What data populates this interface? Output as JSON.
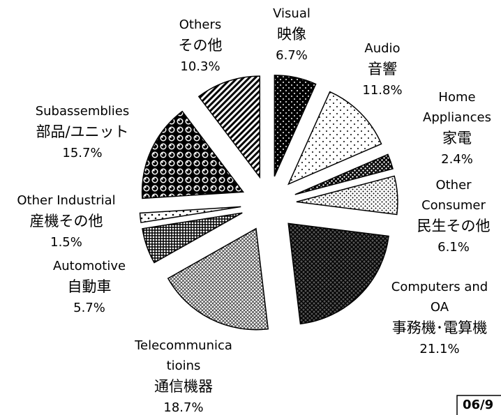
{
  "chart_data": {
    "type": "pie",
    "categories": [
      [
        "Visual",
        "映像"
      ],
      [
        "Audio",
        "音響"
      ],
      [
        "Home",
        "Appliances",
        "家電"
      ],
      [
        "Other",
        "Consumer",
        "民生その他"
      ],
      [
        "Computers and",
        "OA",
        "事務機･電算機"
      ],
      [
        "Telecommunica",
        "tioins",
        "通信機器"
      ],
      [
        "Automotive",
        "自動車"
      ],
      [
        "Other Industrial",
        "産機その他"
      ],
      [
        "Subassemblies",
        "部品/ユニット"
      ],
      [
        "Others",
        "その他"
      ]
    ],
    "values": [
      6.7,
      11.8,
      2.4,
      6.1,
      21.1,
      18.7,
      5.7,
      1.5,
      15.7,
      10.3
    ],
    "value_labels": [
      "6.7%",
      "11.8%",
      "2.4%",
      "6.1%",
      "21.1%",
      "18.7%",
      "5.7%",
      "1.5%",
      "15.7%",
      "10.3%"
    ],
    "footnote": "06/9"
  },
  "exploded": true
}
